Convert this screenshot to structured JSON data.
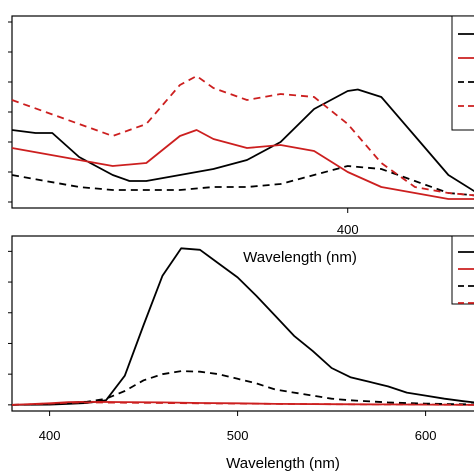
{
  "chart_data": [
    {
      "type": "line",
      "panel": "top",
      "xlabel": "Wavelength (nm)",
      "ylabel": "",
      "xlim": [
        300,
        440
      ],
      "ylim": [
        -0.02,
        0.62
      ],
      "xticks": [
        400
      ],
      "yticks": [
        0,
        0.1,
        0.2,
        0.3,
        0.4,
        0.5,
        0.6
      ],
      "ytick_labels_visible": false,
      "grid": false,
      "legend_placement": "top-right (clipped)",
      "series": [
        {
          "color": "#000000",
          "dash": "solid",
          "x": [
            300,
            307,
            312,
            320,
            330,
            335,
            340,
            350,
            360,
            370,
            380,
            390,
            400,
            403,
            410,
            420,
            430,
            440
          ],
          "y": [
            0.24,
            0.23,
            0.23,
            0.15,
            0.09,
            0.07,
            0.07,
            0.09,
            0.11,
            0.14,
            0.2,
            0.31,
            0.37,
            0.375,
            0.35,
            0.22,
            0.09,
            0.02
          ]
        },
        {
          "color": "#cc1f1f",
          "dash": "solid",
          "x": [
            300,
            310,
            320,
            330,
            340,
            350,
            355,
            360,
            370,
            380,
            390,
            400,
            410,
            420,
            430,
            440
          ],
          "y": [
            0.18,
            0.16,
            0.14,
            0.12,
            0.13,
            0.22,
            0.24,
            0.21,
            0.18,
            0.19,
            0.17,
            0.1,
            0.05,
            0.03,
            0.01,
            0.01
          ]
        },
        {
          "color": "#000000",
          "dash": "dashed",
          "x": [
            300,
            310,
            320,
            330,
            340,
            350,
            360,
            370,
            380,
            390,
            400,
            410,
            420,
            430,
            440
          ],
          "y": [
            0.09,
            0.07,
            0.05,
            0.04,
            0.04,
            0.04,
            0.05,
            0.05,
            0.06,
            0.09,
            0.12,
            0.11,
            0.07,
            0.03,
            0.02
          ]
        },
        {
          "color": "#cc1f1f",
          "dash": "dashed",
          "x": [
            300,
            310,
            320,
            330,
            340,
            350,
            355,
            360,
            370,
            380,
            390,
            400,
            410,
            420,
            430,
            440
          ],
          "y": [
            0.34,
            0.3,
            0.26,
            0.22,
            0.26,
            0.39,
            0.42,
            0.38,
            0.34,
            0.36,
            0.35,
            0.26,
            0.13,
            0.05,
            0.03,
            0.02
          ]
        }
      ]
    },
    {
      "type": "line",
      "panel": "bottom",
      "xlabel": "Wavelength (nm)",
      "ylabel": "",
      "xlim": [
        380,
        630
      ],
      "ylim": [
        -0.2,
        5.5
      ],
      "xticks": [
        400,
        500,
        600
      ],
      "yticks": [
        0,
        1,
        2,
        3,
        4,
        5
      ],
      "ytick_labels_visible": false,
      "grid": false,
      "legend_placement": "top-right (clipped)",
      "series": [
        {
          "color": "#000000",
          "dash": "solid",
          "x": [
            380,
            400,
            410,
            420,
            430,
            440,
            450,
            460,
            470,
            480,
            490,
            500,
            510,
            520,
            530,
            540,
            550,
            560,
            570,
            580,
            590,
            600,
            610,
            620,
            630
          ],
          "y": [
            0,
            0.01,
            0.03,
            0.06,
            0.15,
            0.95,
            2.6,
            4.2,
            5.1,
            5.05,
            4.6,
            4.15,
            3.55,
            2.9,
            2.25,
            1.75,
            1.2,
            0.9,
            0.75,
            0.6,
            0.4,
            0.3,
            0.2,
            0.12,
            0.05
          ]
        },
        {
          "color": "#cc1f1f",
          "dash": "solid",
          "x": [
            380,
            400,
            410,
            420,
            440,
            460,
            480,
            500,
            520,
            550,
            600,
            630
          ],
          "y": [
            0,
            0.05,
            0.09,
            0.1,
            0.09,
            0.08,
            0.06,
            0.05,
            0.03,
            0.02,
            0.01,
            0.0
          ]
        },
        {
          "color": "#000000",
          "dash": "dashed",
          "x": [
            380,
            400,
            410,
            420,
            430,
            440,
            450,
            460,
            470,
            480,
            490,
            500,
            510,
            520,
            530,
            540,
            550,
            560,
            580,
            600,
            630
          ],
          "y": [
            0,
            0.02,
            0.05,
            0.1,
            0.2,
            0.45,
            0.8,
            1.0,
            1.1,
            1.08,
            1.0,
            0.85,
            0.7,
            0.5,
            0.4,
            0.3,
            0.2,
            0.15,
            0.08,
            0.04,
            0.01
          ]
        },
        {
          "color": "#cc1f1f",
          "dash": "dashed",
          "x": [
            380,
            400,
            410,
            420,
            440,
            460,
            480,
            500,
            520,
            550,
            600,
            630
          ],
          "y": [
            0,
            0.04,
            0.07,
            0.08,
            0.07,
            0.06,
            0.05,
            0.04,
            0.03,
            0.02,
            0.01,
            0.0
          ]
        }
      ]
    }
  ]
}
